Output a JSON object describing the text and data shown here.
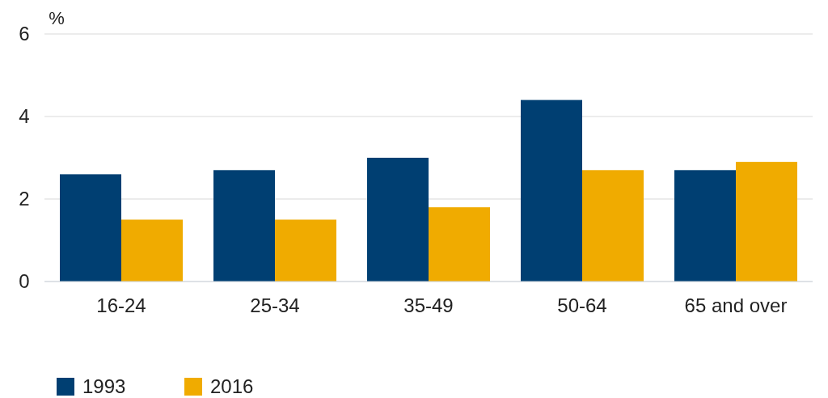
{
  "chart_data": {
    "type": "bar",
    "ylabel": "%",
    "categories": [
      "16-24",
      "25-34",
      "35-49",
      "50-64",
      "65 and over"
    ],
    "series": [
      {
        "name": "1993",
        "color": "#003f72",
        "values": [
          2.6,
          2.7,
          3.0,
          4.4,
          2.7
        ]
      },
      {
        "name": "2016",
        "color": "#f0ab00",
        "values": [
          1.5,
          1.5,
          1.8,
          2.7,
          2.9
        ]
      }
    ],
    "ylim": [
      0,
      6
    ],
    "yticks": [
      0,
      2,
      4,
      6
    ],
    "grid": "y",
    "legend": "bottom left"
  }
}
